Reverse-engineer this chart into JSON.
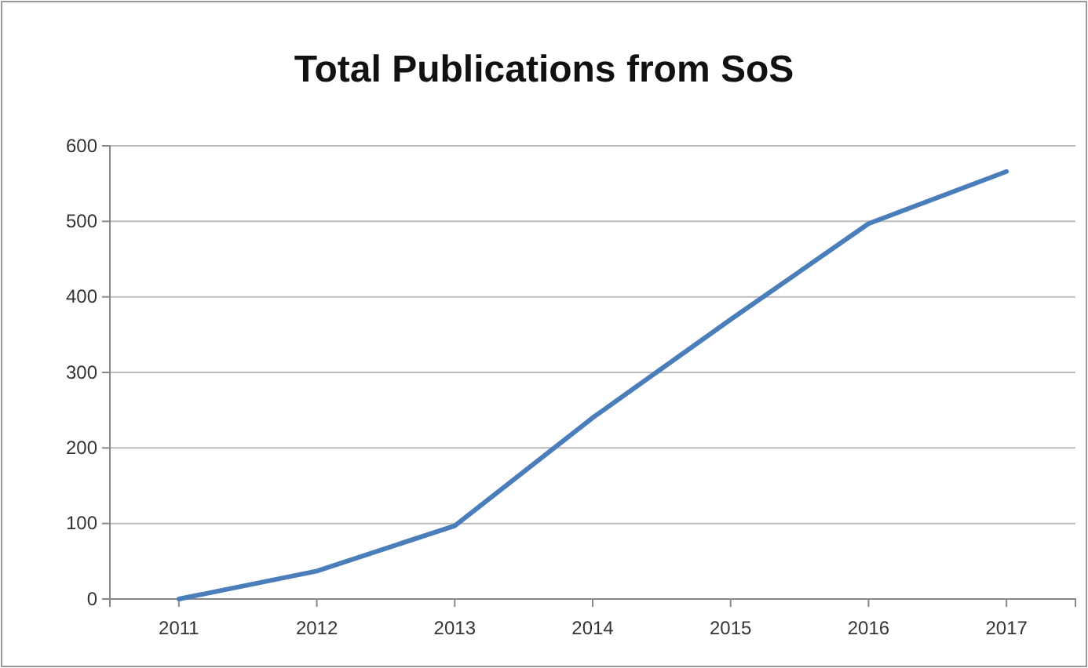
{
  "chart_data": {
    "type": "line",
    "title": "Total Publications from SoS",
    "categories": [
      "2011",
      "2012",
      "2013",
      "2014",
      "2015",
      "2016",
      "2017"
    ],
    "series": [
      {
        "color": "#4a7ebb",
        "values": [
          0,
          37,
          97,
          240,
          370,
          497,
          566
        ]
      }
    ],
    "ylim": [
      0,
      600
    ],
    "yticks": [
      0,
      100,
      200,
      300,
      400,
      500,
      600
    ],
    "grid": "y",
    "marker": "none",
    "line_style": "solid"
  }
}
